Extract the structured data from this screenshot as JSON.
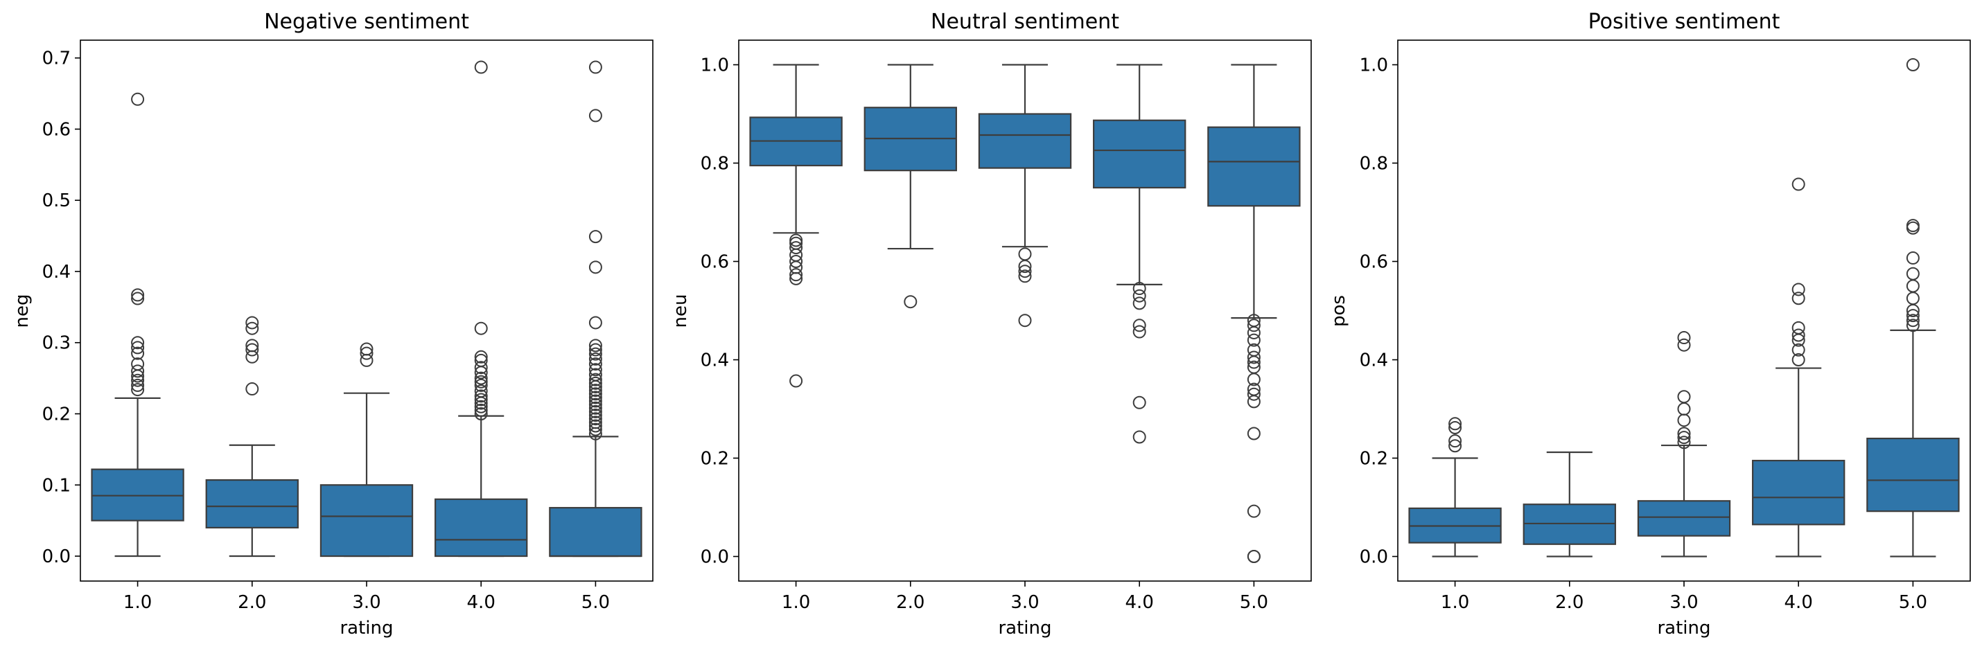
{
  "chart_data": [
    {
      "type": "box",
      "title": "Negative sentiment",
      "xlabel": "rating",
      "ylabel": "neg",
      "categories": [
        "1.0",
        "2.0",
        "3.0",
        "4.0",
        "5.0"
      ],
      "ylim": [
        -0.035,
        0.725
      ],
      "yticks": [
        0.0,
        0.1,
        0.2,
        0.3,
        0.4,
        0.5,
        0.6,
        0.7
      ],
      "yticklabels": [
        "0.0",
        "0.1",
        "0.2",
        "0.3",
        "0.4",
        "0.5",
        "0.6",
        "0.7"
      ],
      "box_color": "#2f75a9",
      "boxes": [
        {
          "whislo": 0.0,
          "q1": 0.05,
          "med": 0.085,
          "q3": 0.122,
          "whishi": 0.222,
          "fliers": [
            0.234,
            0.24,
            0.247,
            0.253,
            0.26,
            0.27,
            0.285,
            0.293,
            0.3,
            0.362,
            0.367,
            0.642
          ]
        },
        {
          "whislo": 0.0,
          "q1": 0.04,
          "med": 0.07,
          "q3": 0.107,
          "whishi": 0.156,
          "fliers": [
            0.235,
            0.28,
            0.29,
            0.296,
            0.32,
            0.328
          ]
        },
        {
          "whislo": 0.0,
          "q1": 0.0,
          "med": 0.056,
          "q3": 0.1,
          "whishi": 0.229,
          "fliers": [
            0.275,
            0.285,
            0.291
          ]
        },
        {
          "whislo": 0.0,
          "q1": 0.0,
          "med": 0.023,
          "q3": 0.08,
          "whishi": 0.197,
          "fliers": [
            0.2,
            0.205,
            0.21,
            0.215,
            0.22,
            0.225,
            0.232,
            0.24,
            0.245,
            0.25,
            0.258,
            0.265,
            0.275,
            0.28,
            0.32,
            0.687
          ]
        },
        {
          "whislo": 0.0,
          "q1": 0.0,
          "med": 0.0,
          "q3": 0.068,
          "whishi": 0.168,
          "fliers": [
            0.172,
            0.178,
            0.183,
            0.188,
            0.193,
            0.198,
            0.203,
            0.208,
            0.213,
            0.218,
            0.223,
            0.228,
            0.233,
            0.238,
            0.243,
            0.248,
            0.255,
            0.262,
            0.27,
            0.277,
            0.284,
            0.29,
            0.296,
            0.328,
            0.406,
            0.449,
            0.619,
            0.687
          ]
        }
      ]
    },
    {
      "type": "box",
      "title": "Neutral sentiment",
      "xlabel": "rating",
      "ylabel": "neu",
      "categories": [
        "1.0",
        "2.0",
        "3.0",
        "4.0",
        "5.0"
      ],
      "ylim": [
        -0.05,
        1.05
      ],
      "yticks": [
        0.0,
        0.2,
        0.4,
        0.6,
        0.8,
        1.0
      ],
      "yticklabels": [
        "0.0",
        "0.2",
        "0.4",
        "0.6",
        "0.8",
        "1.0"
      ],
      "box_color": "#2f75a9",
      "boxes": [
        {
          "whislo": 0.658,
          "q1": 0.795,
          "med": 0.845,
          "q3": 0.893,
          "whishi": 1.0,
          "fliers": [
            0.643,
            0.637,
            0.628,
            0.613,
            0.6,
            0.588,
            0.573,
            0.565,
            0.357
          ]
        },
        {
          "whislo": 0.626,
          "q1": 0.785,
          "med": 0.85,
          "q3": 0.913,
          "whishi": 1.0,
          "fliers": [
            0.518
          ]
        },
        {
          "whislo": 0.63,
          "q1": 0.79,
          "med": 0.857,
          "q3": 0.9,
          "whishi": 1.0,
          "fliers": [
            0.615,
            0.59,
            0.58,
            0.57,
            0.48
          ]
        },
        {
          "whislo": 0.553,
          "q1": 0.75,
          "med": 0.826,
          "q3": 0.887,
          "whishi": 1.0,
          "fliers": [
            0.545,
            0.53,
            0.515,
            0.47,
            0.457,
            0.313,
            0.243
          ]
        },
        {
          "whislo": 0.485,
          "q1": 0.713,
          "med": 0.803,
          "q3": 0.873,
          "whishi": 1.0,
          "fliers": [
            0.48,
            0.47,
            0.455,
            0.44,
            0.42,
            0.405,
            0.395,
            0.385,
            0.36,
            0.34,
            0.33,
            0.315,
            0.25,
            0.092,
            0.0,
            0.0
          ]
        }
      ]
    },
    {
      "type": "box",
      "title": "Positive sentiment",
      "xlabel": "rating",
      "ylabel": "pos",
      "categories": [
        "1.0",
        "2.0",
        "3.0",
        "4.0",
        "5.0"
      ],
      "ylim": [
        -0.05,
        1.05
      ],
      "yticks": [
        0.0,
        0.2,
        0.4,
        0.6,
        0.8,
        1.0
      ],
      "yticklabels": [
        "0.0",
        "0.2",
        "0.4",
        "0.6",
        "0.8",
        "1.0"
      ],
      "box_color": "#2f75a9",
      "boxes": [
        {
          "whislo": 0.0,
          "q1": 0.028,
          "med": 0.062,
          "q3": 0.098,
          "whishi": 0.2,
          "fliers": [
            0.225,
            0.235,
            0.262,
            0.27
          ]
        },
        {
          "whislo": 0.0,
          "q1": 0.025,
          "med": 0.067,
          "q3": 0.106,
          "whishi": 0.212,
          "fliers": []
        },
        {
          "whislo": 0.0,
          "q1": 0.042,
          "med": 0.08,
          "q3": 0.113,
          "whishi": 0.226,
          "fliers": [
            0.232,
            0.242,
            0.25,
            0.277,
            0.3,
            0.325,
            0.43,
            0.445
          ]
        },
        {
          "whislo": 0.0,
          "q1": 0.065,
          "med": 0.12,
          "q3": 0.195,
          "whishi": 0.383,
          "fliers": [
            0.4,
            0.42,
            0.44,
            0.45,
            0.465,
            0.525,
            0.543,
            0.757
          ]
        },
        {
          "whislo": 0.0,
          "q1": 0.092,
          "med": 0.155,
          "q3": 0.24,
          "whishi": 0.46,
          "fliers": [
            0.47,
            0.48,
            0.49,
            0.5,
            0.525,
            0.55,
            0.575,
            0.607,
            0.668,
            0.673,
            1.0
          ]
        }
      ]
    }
  ]
}
